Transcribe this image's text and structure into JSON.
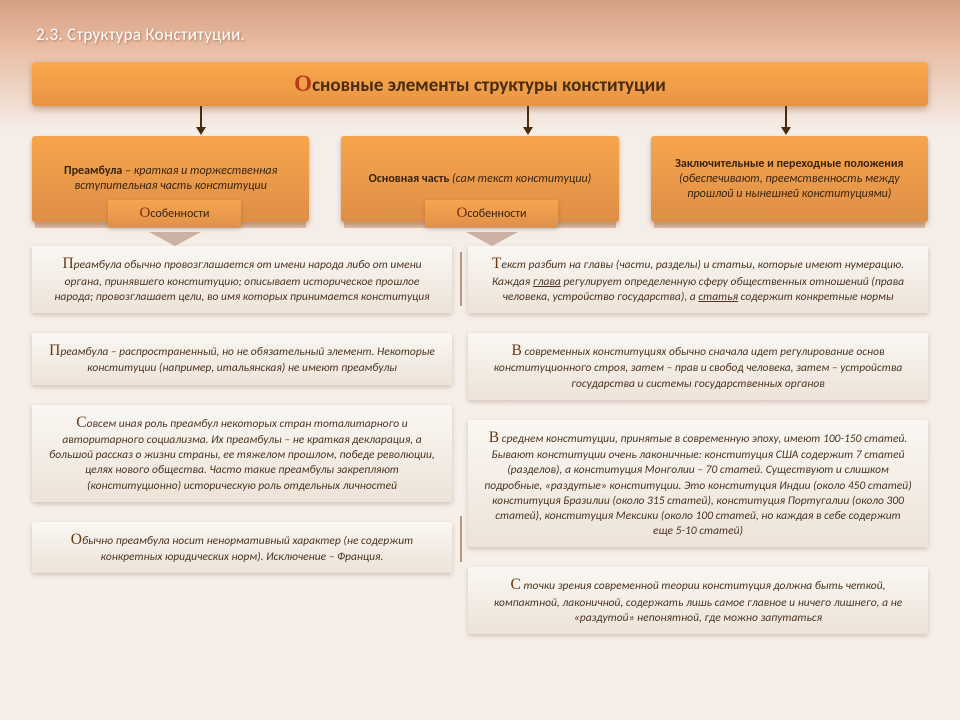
{
  "section_number": "2.3. Структура Конституции.",
  "title": "Основные элементы структуры конституции",
  "headers": {
    "h1": {
      "bold": "Преамбула",
      "rest": " – краткая и торжественная вступительная часть конституции"
    },
    "h2": {
      "bold": "Основная часть",
      "rest": " (сам текст конституции)"
    },
    "h3": {
      "bold": "Заключительные и переходные положения",
      "rest": " (обеспечивают, преемственность между прошлой и нынешней конституциями)"
    }
  },
  "sub_label": "Особенности",
  "left_cards": [
    "Преамбула обычно провозглашается от имени народа либо от имени органа, принявшего конституцию; описывает историческое прошлое народа; провозглашает цели, во имя которых принимается конституция",
    "Преамбула – распространенный, но не обязательный элемент. Некоторые конституции (например, итальянская) не имеют преамбулы",
    "Совсем иная роль преамбул некоторых стран тоталитарного и авторитарного социализма. Их преамбулы – не краткая декларация, а большой рассказ о жизни страны, ее тяжелом прошлом, победе революции, целях нового общества. Часто такие преамбулы закрепляют (конституционно) историческую роль отдельных личностей",
    "Обычно преамбула носит ненормативный характер (не содержит конкретных юридических норм). Исключение – Франция."
  ],
  "right_cards": [
    "Текст разбит на главы (части, разделы) и статьи, которые имеют нумерацию. Каждая <u>глава</u> регулирует определенную сферу общественных отношений (права человека, устройство государства), а <u>статья</u> содержит конкретные нормы",
    "В современных конституциях обычно сначала идет регулирование основ конституционного строя, затем – прав и свобод человека, затем – устройства государства и системы государственных органов",
    "В среднем конституции, принятые в современную эпоху, имеют 100-150 статей. Бывают конституции очень лаконичные: конституция США содержит 7 статей (разделов), а конституция Монголии – 70 статей. Существуют и слишком подробные, «раздутые» конституции. Это конституция Индии (около 450 статей) конституция Бразилии (около 315 статей), конституция Португалии (около 300 статей), конституция Мексики (около 100 статей, но каждая в себе содержит еще 5-10 статей)",
    "С точки зрения современной теории конституция должна быть четкой, компактной, лаконичной, содержать лишь самое главное и ничего лишнего, а не «раздутой» непонятной, где можно запутаться"
  ],
  "colors": {
    "accent": "#f7a54c",
    "text": "#4a2c0f",
    "dropcap": "#7a2e0d"
  }
}
